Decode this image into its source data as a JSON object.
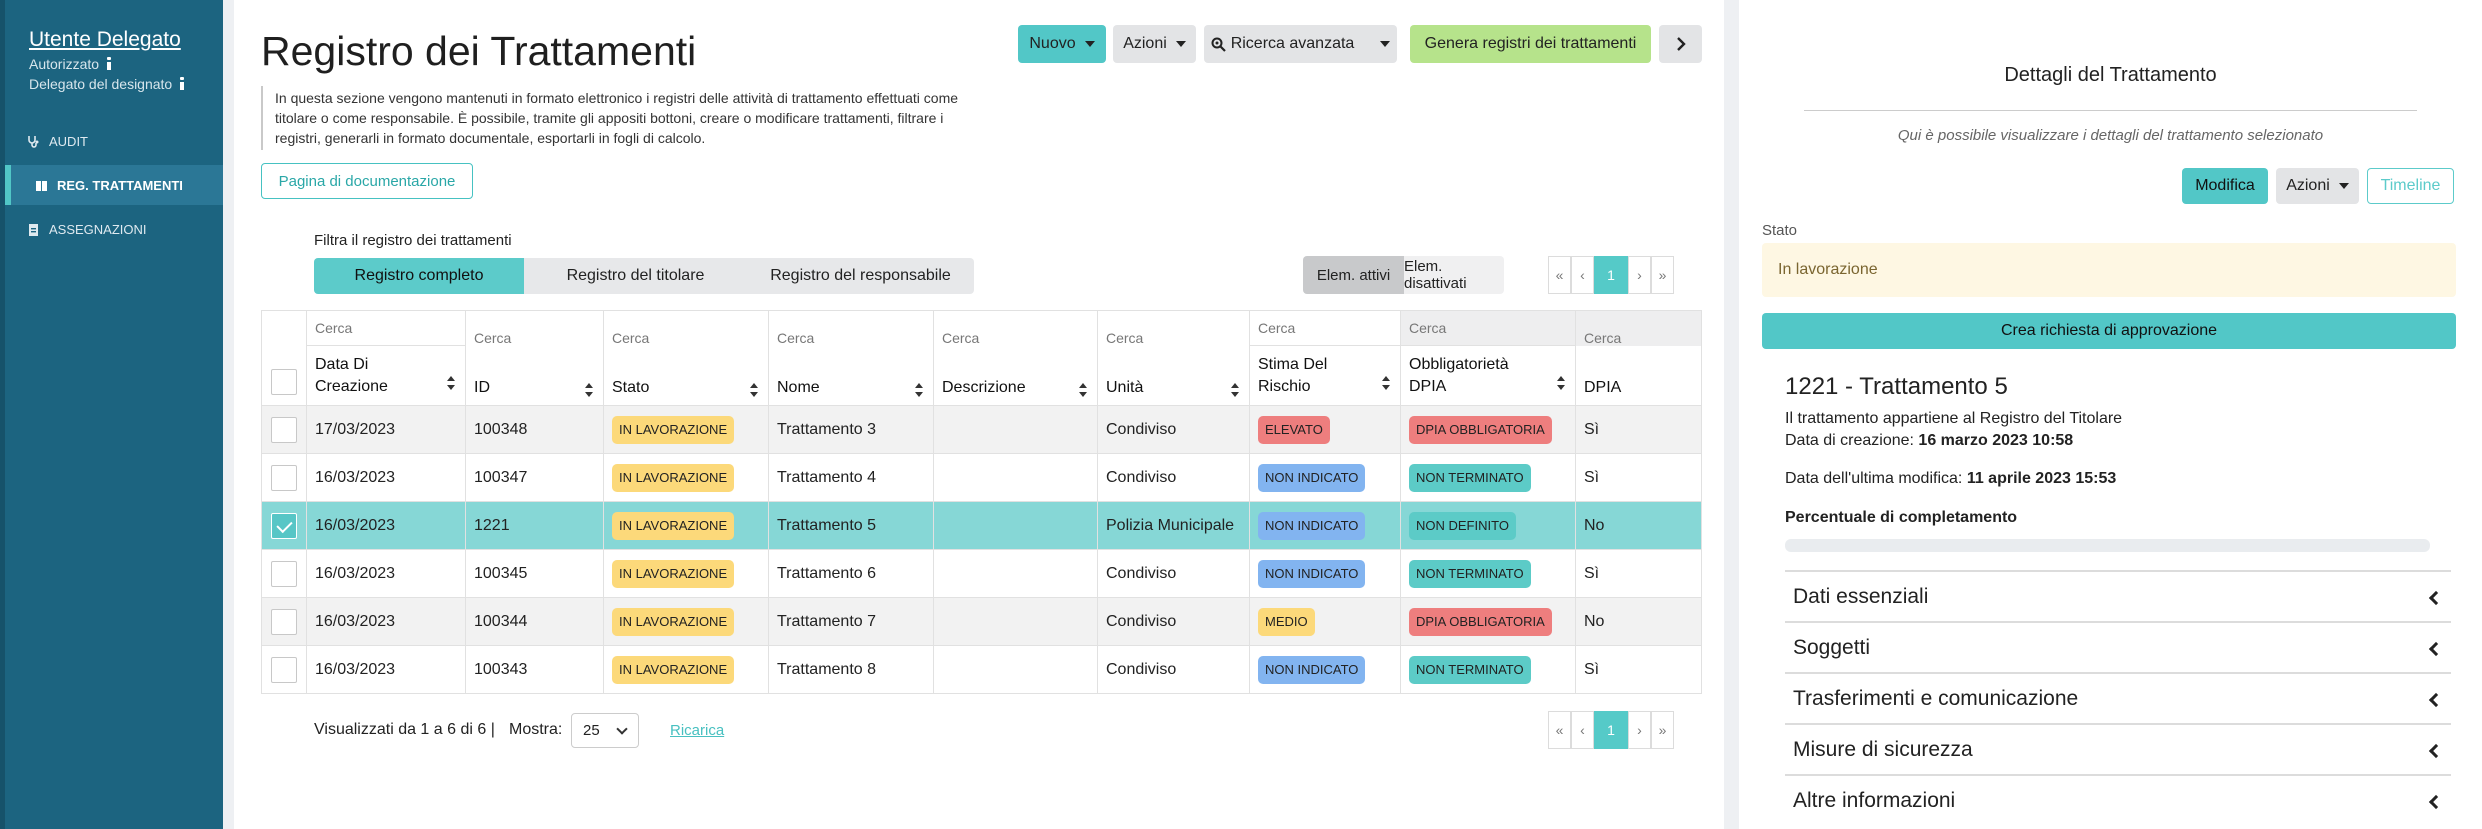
{
  "sidebar": {
    "user_name": "Utente Delegato",
    "role_1": "Autorizzato",
    "role_2": "Delegato del designato",
    "items": [
      {
        "label": "AUDIT",
        "icon": "stethoscope-icon"
      },
      {
        "label": "REG. TRATTAMENTI",
        "icon": "book-icon"
      },
      {
        "label": "ASSEGNAZIONI",
        "icon": "clipboard-icon"
      }
    ]
  },
  "header": {
    "title": "Registro dei Trattamenti",
    "nuovo": "Nuovo",
    "azioni": "Azioni",
    "ricerca": "Ricerca avanzata",
    "genera": "Genera registri dei trattamenti",
    "description": "In questa sezione vengono mantenuti in formato elettronico i registri delle attività di trattamento effettuati come titolare o come responsabile. È possibile, tramite gli appositi bottoni, creare o modificare trattamenti, filtrare i registri, generarli in formato documentale, esportarli in fogli di calcolo.",
    "doc_button": "Pagina di documentazione"
  },
  "filters": {
    "label": "Filtra il registro dei trattamenti",
    "tabs": [
      "Registro completo",
      "Registro del titolare",
      "Registro del responsabile"
    ],
    "active": "Elem. attivi",
    "inactive": "Elem. disattivati"
  },
  "pagination": {
    "first": "«",
    "prev": "‹",
    "page": "1",
    "next": "›",
    "last": "»"
  },
  "table": {
    "search_placeholder": "Cerca",
    "columns": [
      "Data Di Creazione",
      "ID",
      "Stato",
      "Nome",
      "Descrizione",
      "Unità",
      "Stima Del Rischio",
      "Obbligatorietà DPIA",
      "DPIA"
    ],
    "rows": [
      {
        "data": "17/03/2023",
        "id": "100348",
        "stato": "IN LAVORAZIONE",
        "nome": "Trattamento 3",
        "descrizione": "",
        "unita": "Condiviso",
        "rischio": "ELEVATO",
        "obblig": "DPIA OBBLIGATORIA",
        "dpia": "Sì"
      },
      {
        "data": "16/03/2023",
        "id": "100347",
        "stato": "IN LAVORAZIONE",
        "nome": "Trattamento 4",
        "descrizione": "",
        "unita": "Condiviso",
        "rischio": "NON INDICATO",
        "obblig": "NON TERMINATO",
        "dpia": "Sì"
      },
      {
        "data": "16/03/2023",
        "id": "1221",
        "stato": "IN LAVORAZIONE",
        "nome": "Trattamento 5",
        "descrizione": "",
        "unita": "Polizia Municipale",
        "rischio": "NON INDICATO",
        "obblig": "NON DEFINITO",
        "dpia": "No"
      },
      {
        "data": "16/03/2023",
        "id": "100345",
        "stato": "IN LAVORAZIONE",
        "nome": "Trattamento 6",
        "descrizione": "",
        "unita": "Condiviso",
        "rischio": "NON INDICATO",
        "obblig": "NON TERMINATO",
        "dpia": "Sì"
      },
      {
        "data": "16/03/2023",
        "id": "100344",
        "stato": "IN LAVORAZIONE",
        "nome": "Trattamento 7",
        "descrizione": "",
        "unita": "Condiviso",
        "rischio": "MEDIO",
        "obblig": "DPIA OBBLIGATORIA",
        "dpia": "No"
      },
      {
        "data": "16/03/2023",
        "id": "100343",
        "stato": "IN LAVORAZIONE",
        "nome": "Trattamento 8",
        "descrizione": "",
        "unita": "Condiviso",
        "rischio": "NON INDICATO",
        "obblig": "NON TERMINATO",
        "dpia": "Sì"
      }
    ],
    "footer_info": "Visualizzati da 1 a 6 di 6 |",
    "mostra_label": "Mostra:",
    "mostra_value": "25",
    "ricarica": "Ricarica"
  },
  "panel": {
    "title": "Dettagli del Trattamento",
    "subtitle": "Qui è possibile visualizzare i dettagli del trattamento selezionato",
    "modifica": "Modifica",
    "azioni": "Azioni",
    "timeline": "Timeline",
    "stato_label": "Stato",
    "stato_value": "In lavorazione",
    "crea": "Crea richiesta di approvazione",
    "detail_title": "1221 - Trattamento 5",
    "belongs": "Il trattamento appartiene al Registro del Titolare",
    "created_label": "Data di creazione:",
    "created_value": "16 marzo 2023 10:58",
    "modified_label": "Data dell'ultima modifica:",
    "modified_value": "11 aprile 2023 15:53",
    "completion_label": "Percentuale di completamento",
    "completion": 0,
    "sections": [
      "Dati essenziali",
      "Soggetti",
      "Trasferimenti e comunicazione",
      "Misure di sicurezza",
      "Altre informazioni"
    ]
  }
}
